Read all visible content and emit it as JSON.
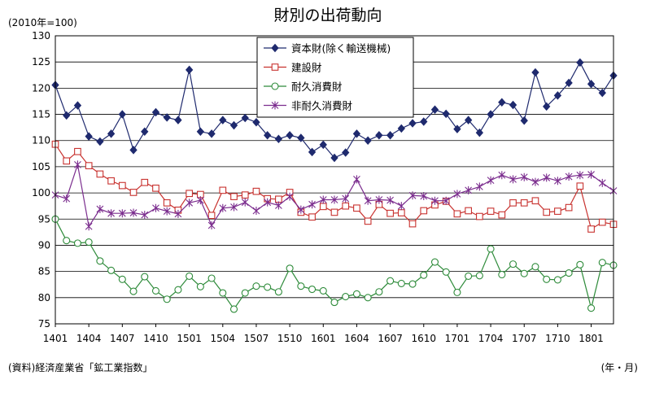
{
  "chart_data": {
    "type": "line",
    "title": "財別の出荷動向",
    "unit_label": "(2010年=100)",
    "source": "(資料)経済産業省「鉱工業指数」",
    "xlabel": "(年・月)",
    "ylim": [
      75,
      130
    ],
    "ytick_step": 5,
    "grid": true,
    "legend_position": "top-center",
    "x": [
      "1401",
      "1402",
      "1403",
      "1404",
      "1405",
      "1406",
      "1407",
      "1408",
      "1409",
      "1410",
      "1411",
      "1412",
      "1501",
      "1502",
      "1503",
      "1504",
      "1505",
      "1506",
      "1507",
      "1508",
      "1509",
      "1510",
      "1511",
      "1512",
      "1601",
      "1602",
      "1603",
      "1604",
      "1605",
      "1606",
      "1607",
      "1608",
      "1609",
      "1610",
      "1611",
      "1612",
      "1701",
      "1702",
      "1703",
      "1704",
      "1705",
      "1706",
      "1707",
      "1708",
      "1709",
      "1710",
      "1711",
      "1712",
      "1801",
      "1802",
      "1803"
    ],
    "xtick_labels": [
      "1401",
      "1404",
      "1407",
      "1410",
      "1501",
      "1504",
      "1507",
      "1510",
      "1601",
      "1604",
      "1607",
      "1610",
      "1701",
      "1704",
      "1707",
      "1710",
      "1801"
    ],
    "series": [
      {
        "name": "資本財(除く輸送機械)",
        "color": "#1f2a6e",
        "marker": "diamond",
        "values": [
          120.6,
          114.8,
          116.7,
          110.8,
          109.8,
          111.3,
          115.0,
          108.2,
          111.7,
          115.4,
          114.4,
          113.9,
          123.5,
          111.7,
          111.3,
          113.9,
          112.9,
          114.3,
          113.5,
          111.0,
          110.3,
          111.0,
          110.5,
          107.8,
          109.2,
          106.7,
          107.7,
          111.3,
          110.0,
          111.0,
          111.0,
          112.3,
          113.3,
          113.6,
          115.9,
          115.1,
          112.2,
          113.9,
          111.5,
          115.0,
          117.3,
          116.8,
          113.8,
          123.0,
          116.5,
          118.6,
          121.0,
          124.9,
          120.8,
          119.1,
          122.4
        ]
      },
      {
        "name": "建設財",
        "color": "#c8322f",
        "marker": "square",
        "values": [
          109.3,
          106.1,
          107.9,
          105.2,
          103.6,
          102.3,
          101.4,
          100.1,
          102.0,
          100.9,
          98.1,
          96.7,
          99.9,
          99.7,
          95.7,
          100.5,
          99.3,
          99.6,
          100.3,
          98.9,
          98.8,
          100.1,
          96.3,
          95.4,
          97.4,
          96.3,
          97.5,
          97.1,
          94.6,
          97.8,
          96.1,
          96.2,
          94.1,
          96.6,
          97.7,
          98.4,
          96.0,
          96.6,
          95.5,
          96.5,
          95.8,
          98.1,
          98.1,
          98.5,
          96.3,
          96.5,
          97.2,
          101.3,
          93.1,
          94.4,
          94.0
        ]
      },
      {
        "name": "耐久消費財",
        "color": "#2e8b3a",
        "marker": "circle",
        "values": [
          95.0,
          90.9,
          90.4,
          90.6,
          87.0,
          85.2,
          83.5,
          81.2,
          84.0,
          81.3,
          79.7,
          81.5,
          84.1,
          82.1,
          83.7,
          80.9,
          77.8,
          80.9,
          82.2,
          82.0,
          81.1,
          85.6,
          82.2,
          81.6,
          81.3,
          79.1,
          80.2,
          80.7,
          80.0,
          81.1,
          83.2,
          82.7,
          82.6,
          84.3,
          86.8,
          84.9,
          81.0,
          84.1,
          84.2,
          89.3,
          84.4,
          86.4,
          84.6,
          85.9,
          83.5,
          83.4,
          84.7,
          86.3,
          78.0,
          86.7,
          86.2
        ]
      },
      {
        "name": "非耐久消費財",
        "color": "#7b2d8e",
        "marker": "star",
        "values": [
          99.6,
          98.9,
          105.4,
          93.6,
          96.9,
          96.1,
          96.1,
          96.2,
          95.8,
          97.1,
          96.5,
          96.0,
          98.1,
          98.6,
          93.8,
          97.1,
          97.3,
          98.2,
          96.6,
          98.2,
          97.6,
          99.3,
          96.8,
          97.8,
          98.7,
          98.7,
          98.9,
          102.6,
          98.5,
          98.7,
          98.6,
          97.5,
          99.5,
          99.4,
          98.5,
          98.5,
          99.8,
          100.5,
          101.2,
          102.4,
          103.4,
          102.6,
          103.0,
          102.1,
          102.9,
          102.3,
          103.1,
          103.4,
          103.5,
          101.9,
          100.4
        ]
      }
    ]
  }
}
